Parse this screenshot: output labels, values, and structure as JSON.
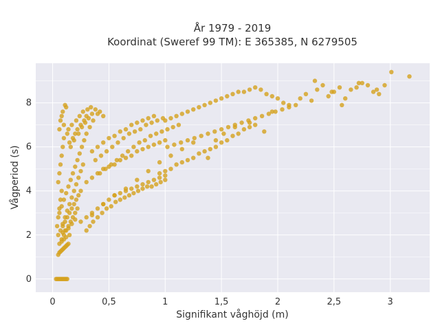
{
  "chart_data": {
    "type": "scatter",
    "title": [
      "År 1979 - 2019",
      "Koordinat (Sweref 99 TM): E 365385, N 6279505"
    ],
    "xlabel": "Signifikant våghöjd (m)",
    "ylabel": "Vågperiod (s)",
    "xlim": [
      -0.15,
      3.35
    ],
    "ylim": [
      -0.6,
      9.8
    ],
    "x_ticks": [
      0,
      0.5,
      1,
      1.5,
      2,
      2.5,
      3
    ],
    "x_tick_labels": [
      "0",
      "0,5",
      "1",
      "1,5",
      "2",
      "2,5",
      "3"
    ],
    "y_ticks": [
      0,
      2,
      4,
      6,
      8
    ],
    "y_tick_labels": [
      "0",
      "2",
      "4",
      "6",
      "8"
    ],
    "grid": true,
    "color": "#d4a11e",
    "background": "#e9e9f1",
    "series": [
      {
        "x": [
          0.03,
          0.05,
          0.07,
          0.09,
          0.11,
          0.13,
          0.04,
          0.08,
          0.12,
          0.06,
          0.1,
          0.05,
          0.06,
          0.08,
          0.1,
          0.12,
          0.14,
          0.07,
          0.09,
          0.11,
          0.13,
          0.08,
          0.1,
          0.12,
          0.15,
          0.09,
          0.11,
          0.14,
          0.17,
          0.2,
          0.04,
          0.05,
          0.06,
          0.07,
          0.08,
          0.05,
          0.06,
          0.07,
          0.08,
          0.09,
          0.1,
          0.06,
          0.07,
          0.09,
          0.11,
          0.12,
          0.08,
          0.1,
          0.13,
          0.15,
          0.18,
          0.2,
          0.22,
          0.25,
          0.28,
          0.3,
          0.16,
          0.19,
          0.23,
          0.26,
          0.29,
          0.32,
          0.35,
          0.14,
          0.17,
          0.21,
          0.24,
          0.27,
          0.31,
          0.34,
          0.38,
          0.4,
          0.42,
          0.45,
          0.06,
          0.08,
          0.1,
          0.12,
          0.14,
          0.16,
          0.18,
          0.2,
          0.22,
          0.24,
          0.26,
          0.28,
          0.3,
          0.33,
          0.36,
          0.09,
          0.11,
          0.13,
          0.15,
          0.17,
          0.19,
          0.21,
          0.23,
          0.25,
          0.27,
          0.05,
          0.07,
          0.09,
          0.11,
          0.13,
          0.15,
          0.17,
          0.19,
          0.21,
          0.23,
          0.25,
          0.06,
          0.08,
          0.1,
          0.12,
          0.14,
          0.16,
          0.18,
          0.2,
          0.22,
          0.35,
          0.4,
          0.45,
          0.5,
          0.55,
          0.6,
          0.65,
          0.7,
          0.75,
          0.8,
          0.85,
          0.9,
          0.38,
          0.43,
          0.48,
          0.53,
          0.58,
          0.63,
          0.68,
          0.73,
          0.78,
          0.83,
          0.88,
          0.93,
          0.98,
          0.42,
          0.47,
          0.52,
          0.57,
          0.62,
          0.67,
          0.72,
          0.77,
          0.82,
          0.87,
          0.92,
          0.97,
          1.02,
          1.07,
          1.12,
          0.3,
          0.35,
          0.4,
          0.45,
          0.5,
          0.55,
          0.6,
          0.65,
          0.7,
          0.75,
          0.8,
          0.85,
          0.9,
          0.95,
          1.0,
          0.25,
          0.3,
          0.35,
          0.4,
          0.45,
          0.5,
          0.55,
          0.6,
          0.65,
          0.7,
          0.75,
          0.8,
          0.85,
          0.9,
          0.95,
          1.0,
          1.0,
          1.05,
          1.1,
          1.15,
          1.2,
          1.25,
          1.3,
          1.35,
          1.4,
          1.45,
          1.5,
          1.55,
          1.6,
          1.65,
          1.7,
          1.75,
          1.8,
          1.85,
          1.9,
          1.95,
          2.0,
          2.05,
          2.1,
          1.02,
          1.08,
          1.14,
          1.2,
          1.26,
          1.32,
          1.38,
          1.44,
          1.5,
          1.56,
          1.62,
          1.68,
          1.74,
          1.8,
          1.86,
          1.92,
          1.98,
          2.04,
          2.1,
          2.16,
          0.95,
          1.0,
          1.05,
          1.1,
          1.15,
          1.2,
          1.25,
          1.3,
          1.35,
          1.4,
          1.45,
          1.5,
          1.55,
          1.6,
          1.65,
          1.7,
          1.75,
          1.8,
          2.2,
          2.25,
          2.3,
          2.35,
          2.4,
          2.45,
          2.5,
          2.55,
          2.6,
          2.65,
          2.7,
          2.75,
          2.8,
          2.85,
          2.9,
          2.95,
          3.01,
          3.17,
          2.33,
          2.48,
          2.57,
          2.72,
          2.88,
          0.3,
          0.33,
          0.36,
          0.4,
          0.44,
          0.48,
          0.52,
          0.56,
          0.6,
          0.64,
          0.68,
          0.72,
          0.76,
          0.8,
          0.84,
          0.88,
          0.92,
          0.96,
          1.0,
          0.35,
          0.45,
          0.55,
          0.65,
          0.75,
          0.85,
          0.95,
          1.05,
          1.15,
          1.25,
          1.38,
          1.45,
          1.52,
          1.62,
          1.75,
          1.88,
          1.95
        ],
        "y": [
          0,
          0,
          0,
          0,
          0,
          0,
          0,
          0,
          0,
          0,
          0,
          1.1,
          1.2,
          1.3,
          1.4,
          1.5,
          1.6,
          1.25,
          1.35,
          1.45,
          1.55,
          1.7,
          1.8,
          1.9,
          2.0,
          2.1,
          2.2,
          2.3,
          2.5,
          2.7,
          2.4,
          2.8,
          3.2,
          3.6,
          4.0,
          4.4,
          4.8,
          5.2,
          5.6,
          6.0,
          6.4,
          6.8,
          7.2,
          7.6,
          7.9,
          7.8,
          7.4,
          7.0,
          6.6,
          6.2,
          6.4,
          6.6,
          6.8,
          7.0,
          7.2,
          7.4,
          6.0,
          6.3,
          6.6,
          6.9,
          7.1,
          7.3,
          7.5,
          6.8,
          7.0,
          7.2,
          7.4,
          7.6,
          7.7,
          7.8,
          7.7,
          7.5,
          7.6,
          7.4,
          3.0,
          3.3,
          3.6,
          3.9,
          4.2,
          4.5,
          4.8,
          5.1,
          5.4,
          5.7,
          6.0,
          6.3,
          6.6,
          6.9,
          7.2,
          2.5,
          2.8,
          3.1,
          3.4,
          3.7,
          4.0,
          4.3,
          4.6,
          4.9,
          5.2,
          2.0,
          2.2,
          2.4,
          2.6,
          2.8,
          3.0,
          3.2,
          3.4,
          3.6,
          3.8,
          4.0,
          1.6,
          1.8,
          2.0,
          2.2,
          2.4,
          2.6,
          2.8,
          3.0,
          3.2,
          5.8,
          6.0,
          6.2,
          6.4,
          6.5,
          6.7,
          6.8,
          7.0,
          7.1,
          7.2,
          7.3,
          7.4,
          5.4,
          5.6,
          5.8,
          6.0,
          6.2,
          6.4,
          6.6,
          6.7,
          6.8,
          7.0,
          7.1,
          7.2,
          7.3,
          4.8,
          5.0,
          5.2,
          5.4,
          5.6,
          5.8,
          6.0,
          6.2,
          6.3,
          6.5,
          6.6,
          6.7,
          6.8,
          6.9,
          7.0,
          4.4,
          4.6,
          4.8,
          5.0,
          5.1,
          5.2,
          5.4,
          5.5,
          5.6,
          5.8,
          5.9,
          6.0,
          6.1,
          6.2,
          6.3,
          2.6,
          2.8,
          3.0,
          3.2,
          3.4,
          3.6,
          3.8,
          3.9,
          4.0,
          4.1,
          4.2,
          4.3,
          4.4,
          4.5,
          4.6,
          4.7,
          7.2,
          7.3,
          7.4,
          7.5,
          7.6,
          7.7,
          7.8,
          7.9,
          8.0,
          8.1,
          8.2,
          8.3,
          8.4,
          8.5,
          8.5,
          8.6,
          8.7,
          8.6,
          8.4,
          8.3,
          8.2,
          8.0,
          7.9,
          6.0,
          6.1,
          6.2,
          6.3,
          6.4,
          6.5,
          6.6,
          6.7,
          6.8,
          6.9,
          7.0,
          7.1,
          7.2,
          7.3,
          7.4,
          7.5,
          7.6,
          7.7,
          7.8,
          7.9,
          4.8,
          4.9,
          5.0,
          5.2,
          5.3,
          5.4,
          5.5,
          5.7,
          5.8,
          5.9,
          6.0,
          6.2,
          6.3,
          6.5,
          6.6,
          6.8,
          6.9,
          7.0,
          8.2,
          8.4,
          8.1,
          8.6,
          8.8,
          8.3,
          8.5,
          8.7,
          8.2,
          8.6,
          8.7,
          8.9,
          8.8,
          8.5,
          8.4,
          8.8,
          9.4,
          9.2,
          9.0,
          8.5,
          7.9,
          8.9,
          8.6,
          2.2,
          2.4,
          2.6,
          2.8,
          3.0,
          3.2,
          3.3,
          3.5,
          3.6,
          3.7,
          3.8,
          3.9,
          4.0,
          4.1,
          4.2,
          4.2,
          4.3,
          4.4,
          4.5,
          2.9,
          3.4,
          3.8,
          4.1,
          4.5,
          4.9,
          5.3,
          5.6,
          5.9,
          6.2,
          5.5,
          6.3,
          6.6,
          6.9,
          7.1,
          6.7,
          7.6
        ]
      }
    ]
  }
}
